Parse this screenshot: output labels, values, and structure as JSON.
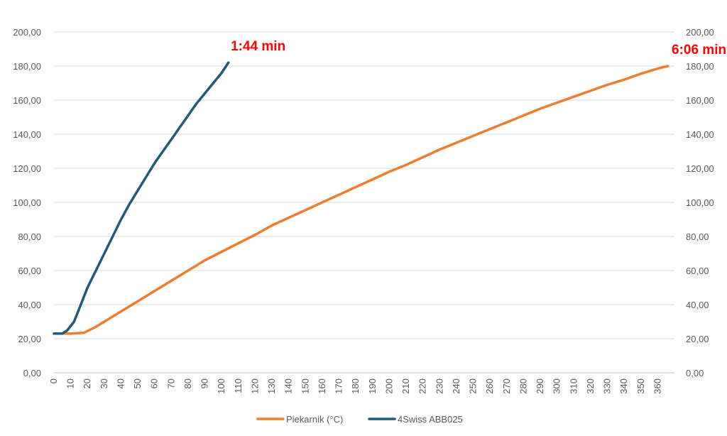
{
  "chart_data": {
    "type": "line",
    "title": "",
    "xlabel": "",
    "ylabel": "",
    "xlim": [
      0,
      370
    ],
    "ylim": [
      0,
      200
    ],
    "x_ticks": [
      0,
      10,
      20,
      30,
      40,
      50,
      60,
      70,
      80,
      90,
      100,
      110,
      120,
      130,
      140,
      150,
      160,
      170,
      180,
      190,
      200,
      210,
      220,
      230,
      240,
      250,
      260,
      270,
      280,
      290,
      300,
      310,
      320,
      330,
      340,
      350,
      360
    ],
    "y_ticks": [
      "0,00",
      "20,00",
      "40,00",
      "60,00",
      "80,00",
      "100,00",
      "120,00",
      "140,00",
      "160,00",
      "180,00",
      "200,00"
    ],
    "y_tick_values": [
      0,
      20,
      40,
      60,
      80,
      100,
      120,
      140,
      160,
      180,
      200
    ],
    "grid": "horizontal",
    "legend_position": "bottom",
    "series": [
      {
        "name": "Piekarnik (°C)",
        "color": "#ED7D31",
        "points": [
          [
            0,
            23
          ],
          [
            10,
            23
          ],
          [
            18,
            23.5
          ],
          [
            20,
            24.5
          ],
          [
            25,
            27
          ],
          [
            30,
            30
          ],
          [
            40,
            36
          ],
          [
            50,
            42
          ],
          [
            60,
            48
          ],
          [
            70,
            54
          ],
          [
            80,
            60
          ],
          [
            90,
            66
          ],
          [
            100,
            71
          ],
          [
            110,
            76
          ],
          [
            120,
            81
          ],
          [
            130,
            86.5
          ],
          [
            140,
            91
          ],
          [
            150,
            95.5
          ],
          [
            160,
            100
          ],
          [
            170,
            104.5
          ],
          [
            180,
            109
          ],
          [
            190,
            113.5
          ],
          [
            200,
            118
          ],
          [
            210,
            122
          ],
          [
            220,
            126.5
          ],
          [
            230,
            131
          ],
          [
            240,
            135
          ],
          [
            250,
            139
          ],
          [
            260,
            143
          ],
          [
            270,
            147
          ],
          [
            280,
            151
          ],
          [
            290,
            155
          ],
          [
            300,
            158.5
          ],
          [
            310,
            162
          ],
          [
            320,
            165.5
          ],
          [
            330,
            169
          ],
          [
            340,
            172
          ],
          [
            350,
            175.5
          ],
          [
            360,
            178.5
          ],
          [
            366,
            180
          ]
        ]
      },
      {
        "name": "4Swiss ABB025",
        "color": "#1F5C7A",
        "points": [
          [
            0,
            23
          ],
          [
            5,
            23
          ],
          [
            8,
            25
          ],
          [
            12,
            30
          ],
          [
            16,
            40
          ],
          [
            20,
            50
          ],
          [
            25,
            60
          ],
          [
            30,
            70
          ],
          [
            35,
            80
          ],
          [
            40,
            90
          ],
          [
            45,
            99
          ],
          [
            50,
            107
          ],
          [
            55,
            115
          ],
          [
            60,
            123
          ],
          [
            65,
            130
          ],
          [
            70,
            137
          ],
          [
            75,
            144
          ],
          [
            80,
            151
          ],
          [
            85,
            158
          ],
          [
            90,
            164
          ],
          [
            95,
            170
          ],
          [
            100,
            176
          ],
          [
            104,
            182
          ]
        ]
      }
    ],
    "annotations": [
      {
        "text": "1:44 min",
        "x": 104,
        "y": 182,
        "color": "#FF0000"
      },
      {
        "text": "6:06 min",
        "x": 366,
        "y": 180,
        "color": "#FF0000"
      }
    ]
  }
}
